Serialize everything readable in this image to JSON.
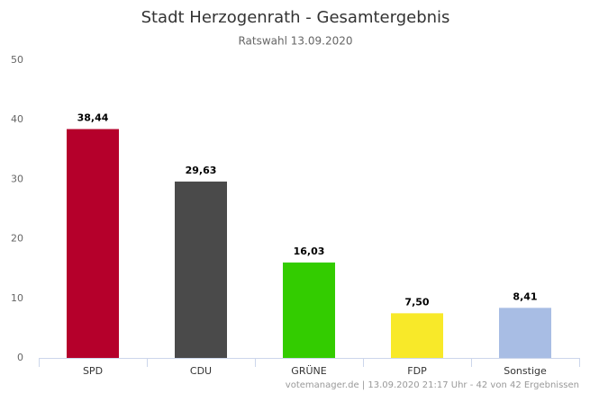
{
  "chart_data": {
    "type": "bar",
    "title": "Stadt Herzogenrath - Gesamtergebnis",
    "subtitle": "Ratswahl 13.09.2020",
    "categories": [
      "SPD",
      "CDU",
      "GRÜNE",
      "FDP",
      "Sonstige"
    ],
    "values": [
      38.44,
      29.63,
      16.03,
      7.5,
      8.41
    ],
    "value_labels": [
      "38,44",
      "29,63",
      "16,03",
      "7,50",
      "8,41"
    ],
    "colors": [
      "#b5002b",
      "#4a4a4a",
      "#33cc00",
      "#f8e929",
      "#a8bde4"
    ],
    "ylim": [
      0,
      50
    ],
    "yticks": [
      0,
      10,
      20,
      30,
      40,
      50
    ],
    "grid": false,
    "credit": "votemanager.de | 13.09.2020 21:17 Uhr - 42 von 42 Ergebnissen"
  }
}
